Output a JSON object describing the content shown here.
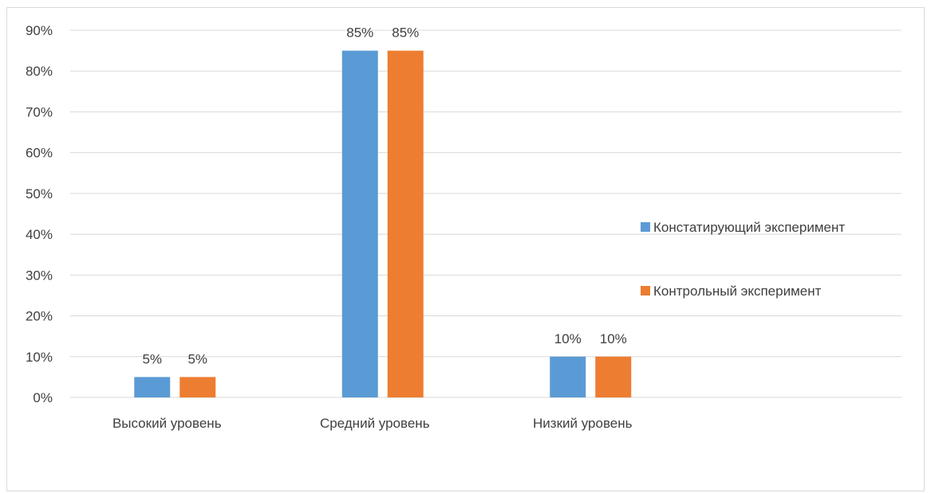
{
  "chart_data": {
    "type": "bar",
    "categories": [
      "Высокий уровень",
      "Средний уровень",
      "Низкий уровень"
    ],
    "series": [
      {
        "name": "Констатирующий эксперимент",
        "values": [
          5,
          85,
          10
        ],
        "color": "#5b9bd5"
      },
      {
        "name": "Контрольный эксперимент",
        "values": [
          5,
          85,
          10
        ],
        "color": "#ed7d31"
      }
    ],
    "ylim": [
      0,
      90
    ],
    "yticks": [
      "0%",
      "10%",
      "20%",
      "30%",
      "40%",
      "50%",
      "60%",
      "70%",
      "80%",
      "90%"
    ],
    "value_labels": [
      [
        "5%",
        "85%",
        "10%"
      ],
      [
        "5%",
        "85%",
        "10%"
      ]
    ],
    "legend_position": "right",
    "grid": true
  }
}
